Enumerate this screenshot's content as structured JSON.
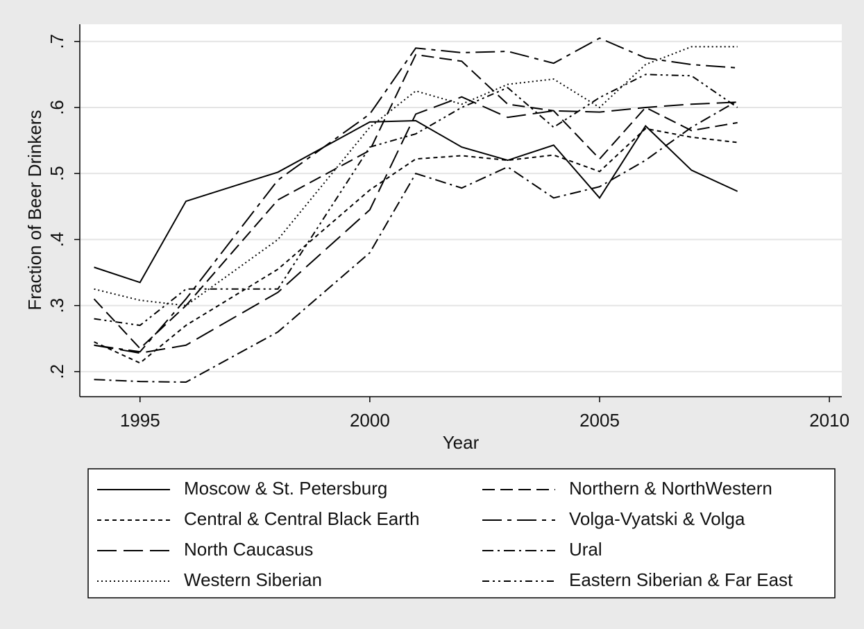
{
  "chart_data": {
    "type": "line",
    "x_label": "Year",
    "y_label": "Fraction of Beer Drinkers",
    "x": [
      1994,
      1995,
      1996,
      1998,
      2000,
      2001,
      2002,
      2003,
      2004,
      2005,
      2006,
      2007,
      2008
    ],
    "xlim": [
      1993.69,
      2010.27
    ],
    "xticks": [
      1995,
      2000,
      2005,
      2010
    ],
    "ylim": [
      0.162,
      0.726
    ],
    "yticks": [
      {
        "value": 0.2,
        "label": ".2"
      },
      {
        "value": 0.3,
        "label": ".3"
      },
      {
        "value": 0.4,
        "label": ".4"
      },
      {
        "value": 0.5,
        "label": ".5"
      },
      {
        "value": 0.6,
        "label": ".6"
      },
      {
        "value": 0.7,
        "label": ".7"
      }
    ],
    "grid": true,
    "series": [
      {
        "name": "Moscow & St. Petersburg",
        "color": "#000000",
        "values": [
          0.358,
          0.335,
          0.458,
          0.502,
          0.578,
          0.58,
          0.54,
          0.52,
          0.543,
          0.463,
          0.572,
          0.505,
          0.473
        ]
      },
      {
        "name": "Northern & NorthWestern",
        "color": "#000000",
        "values": [
          0.31,
          0.235,
          0.3,
          0.46,
          0.535,
          0.68,
          0.67,
          0.605,
          0.595,
          0.522,
          0.6,
          0.565,
          0.577
        ]
      },
      {
        "name": "Central & Central Black Earth",
        "color": "#000000",
        "values": [
          0.245,
          0.213,
          0.27,
          0.355,
          0.475,
          0.522,
          0.527,
          0.52,
          0.528,
          0.503,
          0.568,
          0.555,
          0.547
        ]
      },
      {
        "name": "Volga-Vyatski & Volga",
        "color": "#000000",
        "values": [
          0.24,
          0.23,
          0.31,
          0.49,
          0.59,
          0.69,
          0.683,
          0.685,
          0.667,
          0.705,
          0.675,
          0.665,
          0.66
        ]
      },
      {
        "name": "North Caucasus",
        "color": "#000000",
        "values": [
          0.24,
          0.228,
          0.24,
          0.32,
          0.445,
          0.59,
          0.616,
          0.585,
          0.595,
          0.593,
          0.6,
          0.605,
          0.608
        ]
      },
      {
        "name": "Ural",
        "color": "#000000",
        "values": [
          0.188,
          0.185,
          0.184,
          0.26,
          0.38,
          0.5,
          0.478,
          0.51,
          0.463,
          0.48,
          0.52,
          0.57,
          0.61
        ]
      },
      {
        "name": "Western Siberian",
        "color": "#000000",
        "values": [
          0.325,
          0.308,
          0.3,
          0.4,
          0.57,
          0.625,
          0.605,
          0.635,
          0.643,
          0.6,
          0.665,
          0.692,
          0.692
        ]
      },
      {
        "name": "Eastern Siberian & Far East",
        "color": "#000000",
        "values": [
          0.28,
          0.27,
          0.325,
          0.325,
          0.54,
          0.56,
          0.6,
          0.63,
          0.57,
          0.615,
          0.65,
          0.648,
          0.6
        ]
      }
    ]
  }
}
